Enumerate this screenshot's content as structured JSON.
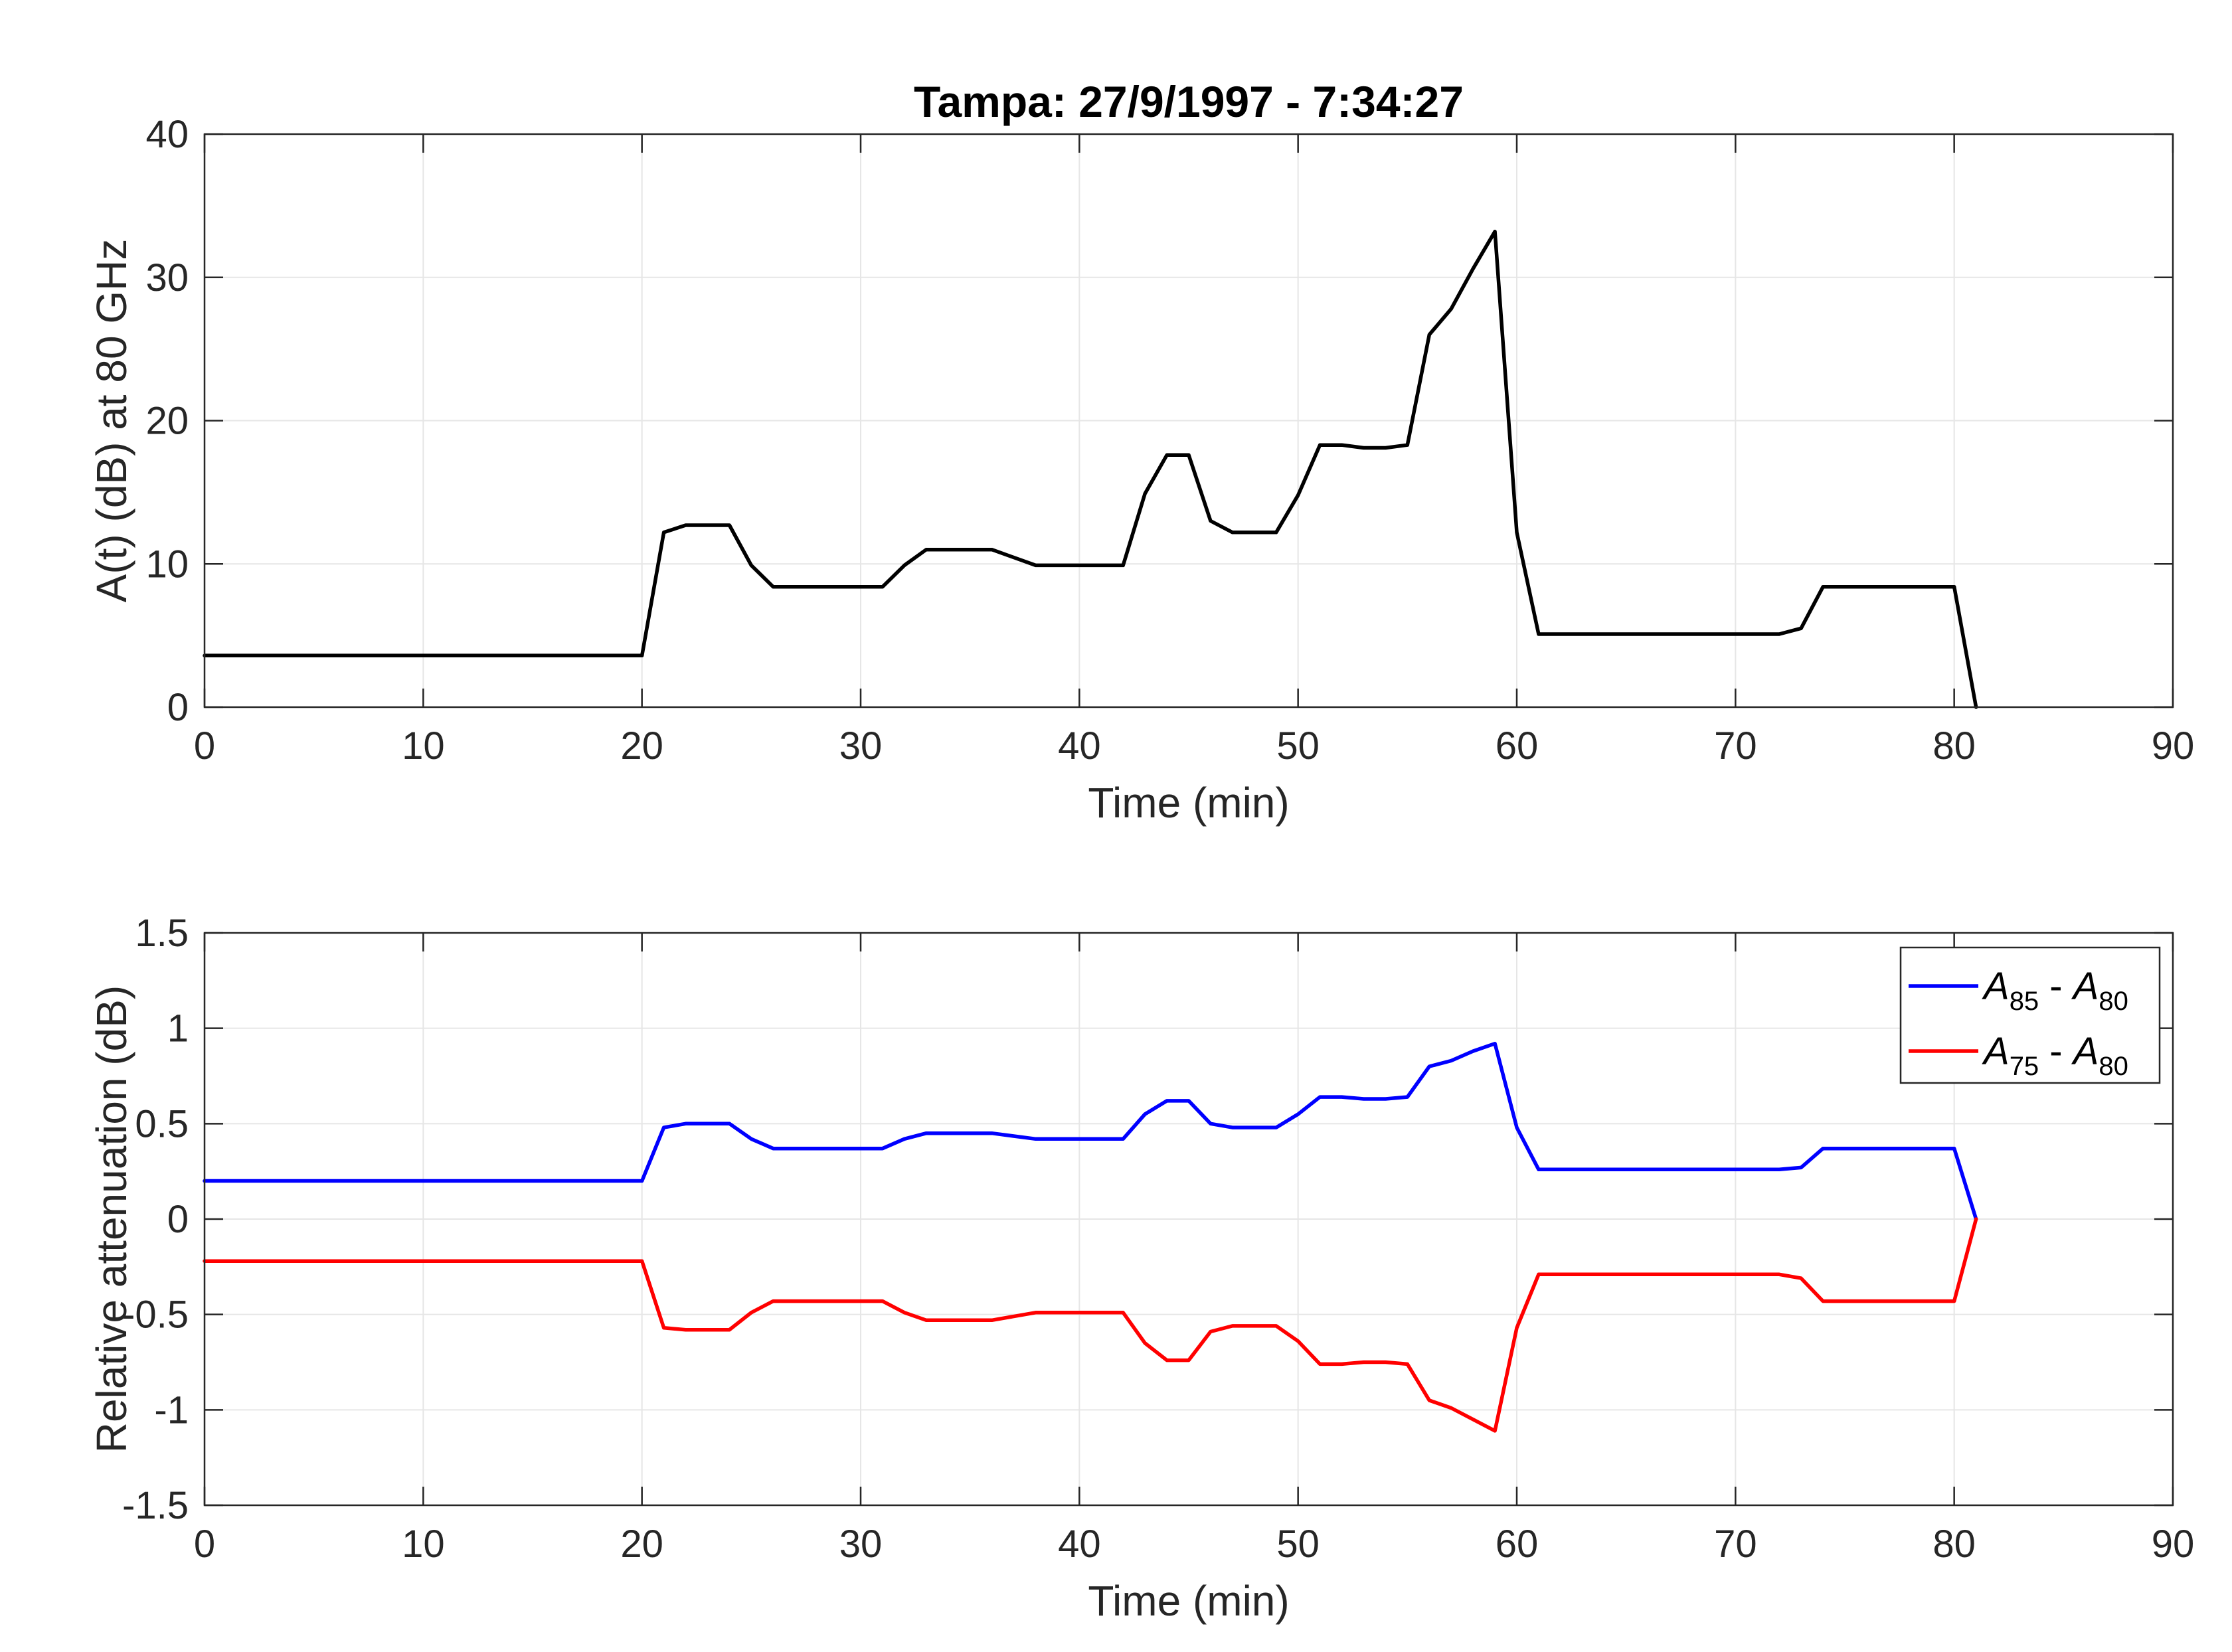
{
  "chart_data": [
    {
      "type": "line",
      "title": "Tampa: 27/9/1997 - 7:34:27",
      "xlabel": "Time (min)",
      "ylabel": "A(t) (dB) at 80 GHz",
      "xlim": [
        0,
        90
      ],
      "ylim": [
        0,
        40
      ],
      "xticks": [
        "0",
        "10",
        "20",
        "30",
        "40",
        "50",
        "60",
        "70",
        "80",
        "90"
      ],
      "yticks": [
        "0",
        "10",
        "20",
        "30",
        "40"
      ],
      "grid": true,
      "series": [
        {
          "color": "#000000",
          "x": [
            0,
            20,
            21,
            22,
            24,
            25,
            26,
            28,
            31,
            32,
            33,
            36,
            38,
            42,
            43,
            44,
            45,
            46,
            47,
            49,
            50,
            51,
            52,
            53,
            54,
            55,
            56,
            57,
            58,
            59,
            60,
            61,
            65,
            70,
            72,
            73,
            74,
            76,
            80,
            81
          ],
          "values": [
            3.6,
            3.6,
            12.2,
            12.7,
            12.7,
            9.9,
            8.4,
            8.4,
            8.4,
            9.9,
            11.0,
            11.0,
            9.9,
            9.9,
            14.9,
            17.6,
            17.6,
            13.0,
            12.2,
            12.2,
            14.8,
            18.3,
            18.3,
            18.1,
            18.1,
            18.3,
            26.0,
            27.8,
            30.6,
            33.2,
            12.2,
            5.1,
            5.1,
            5.1,
            5.1,
            5.5,
            8.4,
            8.4,
            8.4,
            0
          ]
        }
      ]
    },
    {
      "type": "line",
      "xlabel": "Time (min)",
      "ylabel": "Relative attenuation (dB)",
      "xlim": [
        0,
        90
      ],
      "ylim": [
        -1.5,
        1.5
      ],
      "xticks": [
        "0",
        "10",
        "20",
        "30",
        "40",
        "50",
        "60",
        "70",
        "80",
        "90"
      ],
      "yticks": [
        "-1.5",
        "-1",
        "-0.5",
        "0",
        "0.5",
        "1",
        "1.5"
      ],
      "grid": true,
      "legend_position": "top-right",
      "series": [
        {
          "name": "A85 - A80",
          "legend": {
            "a1": "A",
            "s1": "85",
            "sep": " - ",
            "a2": "A",
            "s2": "80"
          },
          "color": "#0000ff",
          "x": [
            0,
            20,
            21,
            22,
            24,
            25,
            26,
            28,
            31,
            32,
            33,
            36,
            38,
            42,
            43,
            44,
            45,
            46,
            47,
            49,
            50,
            51,
            52,
            53,
            54,
            55,
            56,
            57,
            58,
            59,
            60,
            61,
            65,
            70,
            72,
            73,
            74,
            76,
            80,
            81
          ],
          "values": [
            0.2,
            0.2,
            0.48,
            0.5,
            0.5,
            0.42,
            0.37,
            0.37,
            0.37,
            0.42,
            0.45,
            0.45,
            0.42,
            0.42,
            0.55,
            0.62,
            0.62,
            0.5,
            0.48,
            0.48,
            0.55,
            0.64,
            0.64,
            0.63,
            0.63,
            0.64,
            0.8,
            0.83,
            0.88,
            0.92,
            0.48,
            0.26,
            0.26,
            0.26,
            0.26,
            0.27,
            0.37,
            0.37,
            0.37,
            0.0
          ]
        },
        {
          "name": "A75 - A80",
          "legend": {
            "a1": "A",
            "s1": "75",
            "sep": " - ",
            "a2": "A",
            "s2": "80"
          },
          "color": "#ff0000",
          "x": [
            0,
            20,
            21,
            22,
            24,
            25,
            26,
            28,
            31,
            32,
            33,
            36,
            38,
            42,
            43,
            44,
            45,
            46,
            47,
            49,
            50,
            51,
            52,
            53,
            54,
            55,
            56,
            57,
            58,
            59,
            60,
            61,
            65,
            70,
            72,
            73,
            74,
            76,
            80,
            81
          ],
          "values": [
            -0.22,
            -0.22,
            -0.57,
            -0.58,
            -0.58,
            -0.49,
            -0.43,
            -0.43,
            -0.43,
            -0.49,
            -0.53,
            -0.53,
            -0.49,
            -0.49,
            -0.65,
            -0.74,
            -0.74,
            -0.59,
            -0.56,
            -0.56,
            -0.64,
            -0.76,
            -0.76,
            -0.75,
            -0.75,
            -0.76,
            -0.95,
            -0.99,
            -1.05,
            -1.11,
            -0.57,
            -0.29,
            -0.29,
            -0.29,
            -0.29,
            -0.31,
            -0.43,
            -0.43,
            -0.43,
            0.0
          ]
        }
      ]
    }
  ]
}
